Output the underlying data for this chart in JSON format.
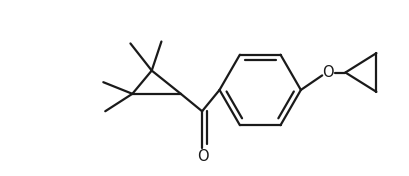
{
  "background_color": "#ffffff",
  "line_color": "#1a1a1a",
  "line_width": 1.6,
  "figsize": [
    4.1,
    1.76
  ],
  "dpi": 100,
  "label_O_ketone": {
    "text": "O",
    "fontsize": 10.5
  },
  "label_O_ether": {
    "text": "O",
    "fontsize": 10.5
  }
}
